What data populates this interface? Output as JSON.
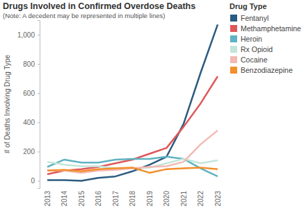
{
  "chart_data": {
    "type": "line",
    "title": "Drugs Involved in Confirmed Overdose Deaths",
    "subtitle": "(Note: A decedent may be represented in multiple lines)",
    "y_label": "# of Deaths Involving Drug Type",
    "legend_title": "Drug Type",
    "legend": "right",
    "categories": [
      "2013",
      "2014",
      "2015",
      "2016",
      "2017",
      "2018",
      "2019",
      "2020",
      "2021",
      "2022",
      "2023"
    ],
    "ylim": [
      -50,
      1100
    ],
    "yticks": [
      0,
      200,
      400,
      600,
      800,
      {
        "value": 1000,
        "label": "1,000"
      }
    ],
    "series": [
      {
        "name": "Fentanyl",
        "color": "#2c5b80",
        "values": [
          5,
          5,
          0,
          20,
          30,
          65,
          110,
          165,
          390,
          740,
          1070
        ]
      },
      {
        "name": "Methamphetamine",
        "color": "#e05759",
        "values": [
          45,
          70,
          80,
          95,
          120,
          145,
          185,
          225,
          370,
          530,
          715
        ]
      },
      {
        "name": "Heroin",
        "color": "#5fb3c2",
        "values": [
          95,
          145,
          125,
          125,
          145,
          150,
          150,
          165,
          150,
          85,
          30
        ]
      },
      {
        "name": "Rx Opioid",
        "color": "#c3e5d9",
        "values": [
          130,
          110,
          100,
          100,
          85,
          85,
          90,
          120,
          150,
          120,
          140
        ]
      },
      {
        "name": "Cocaine",
        "color": "#f4b9b2",
        "values": [
          70,
          70,
          55,
          70,
          75,
          85,
          95,
          100,
          130,
          250,
          345
        ]
      },
      {
        "name": "Benzodiazepine",
        "color": "#f28e2b",
        "values": [
          70,
          75,
          65,
          80,
          85,
          90,
          55,
          80,
          85,
          90,
          80
        ]
      }
    ]
  }
}
